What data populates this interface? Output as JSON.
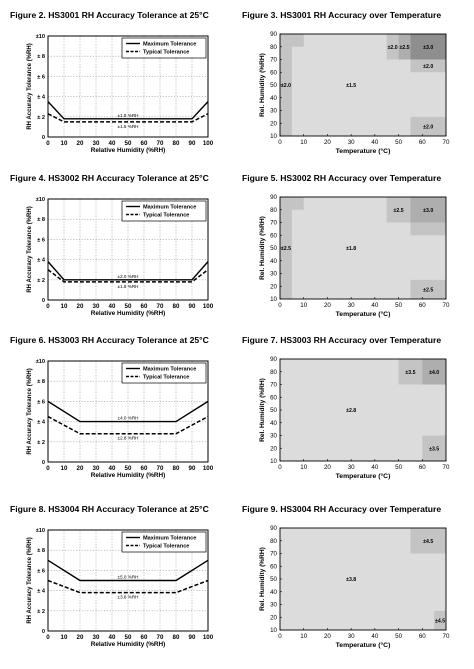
{
  "chart_data": [
    {
      "type": "line",
      "title": "Figure 2.  HS3001 RH Accuracy Tolerance at 25°C",
      "xlabel": "Relative Humidity (%RH)",
      "ylabel": "RH Accuracy Tolerance (%RH)",
      "xlim": [
        0,
        100
      ],
      "ylim": [
        0,
        10
      ],
      "x_ticks": [
        "0",
        "10",
        "20",
        "30",
        "40",
        "50",
        "60",
        "70",
        "80",
        "90",
        "100"
      ],
      "y_ticks": [
        "0",
        "± 2",
        "± 4",
        "± 6",
        "± 8",
        "±10"
      ],
      "grid": true,
      "legend_position": "top-right",
      "series": [
        {
          "name": "Maximum Tolerance",
          "style": "solid",
          "x": [
            0,
            10,
            90,
            100
          ],
          "values": [
            3.5,
            1.8,
            1.8,
            3.5
          ]
        },
        {
          "name": "Typical Tolerance",
          "style": "dashed",
          "x": [
            0,
            10,
            90,
            100
          ],
          "values": [
            2.3,
            1.5,
            1.5,
            2.3
          ]
        }
      ],
      "annotations": [
        {
          "text": "±1.8 %RH",
          "x": 50,
          "y": 1.8
        },
        {
          "text": "±1.5 %RH",
          "x": 50,
          "y": 1.5
        }
      ]
    },
    {
      "type": "heatmap",
      "title": "Figure 3.  HS3001 RH Accuracy over Temperature",
      "xlabel": "Temperature (°C)",
      "ylabel": "Rel. Humidity (%RH)",
      "xlim": [
        0,
        70
      ],
      "ylim": [
        10,
        90
      ],
      "x_ticks": [
        "0",
        "10",
        "20",
        "30",
        "40",
        "50",
        "60",
        "70"
      ],
      "y_ticks": [
        "10",
        "20",
        "30",
        "40",
        "50",
        "60",
        "70",
        "80",
        "90"
      ],
      "regions": [
        {
          "x": [
            0,
            70
          ],
          "y": [
            10,
            90
          ],
          "label": "±1.5",
          "color": "#dcdcdc"
        },
        {
          "x": [
            0,
            5
          ],
          "y": [
            10,
            90
          ],
          "label": "±2.0",
          "color": "#c4c4c4"
        },
        {
          "x": [
            0,
            10
          ],
          "y": [
            80,
            90
          ],
          "label": "",
          "color": "#c4c4c4"
        },
        {
          "x": [
            45,
            50
          ],
          "y": [
            70,
            90
          ],
          "label": "±2.0",
          "color": "#c4c4c4"
        },
        {
          "x": [
            50,
            55
          ],
          "y": [
            70,
            90
          ],
          "label": "±2.5",
          "color": "#aeaeae"
        },
        {
          "x": [
            55,
            70
          ],
          "y": [
            70,
            90
          ],
          "label": "±3.0",
          "color": "#8e8e8e"
        },
        {
          "x": [
            55,
            70
          ],
          "y": [
            60,
            70
          ],
          "label": "±2.0",
          "color": "#c4c4c4"
        },
        {
          "x": [
            55,
            70
          ],
          "y": [
            10,
            25
          ],
          "label": "±2.0",
          "color": "#c4c4c4"
        }
      ]
    },
    {
      "type": "line",
      "title": "Figure 4.  HS3002 RH Accuracy Tolerance at 25°C",
      "xlabel": "Relative Humidity (%RH)",
      "ylabel": "RH Accuracy Tolerance (%RH)",
      "xlim": [
        0,
        100
      ],
      "ylim": [
        0,
        10
      ],
      "x_ticks": [
        "0",
        "10",
        "20",
        "30",
        "40",
        "50",
        "60",
        "70",
        "80",
        "90",
        "100"
      ],
      "y_ticks": [
        "0",
        "± 2",
        "± 4",
        "± 6",
        "± 8",
        "±10"
      ],
      "grid": true,
      "legend_position": "top-right",
      "series": [
        {
          "name": "Maximum Tolerance",
          "style": "solid",
          "x": [
            0,
            10,
            90,
            100
          ],
          "values": [
            3.8,
            2.0,
            2.0,
            3.8
          ]
        },
        {
          "name": "Typical Tolerance",
          "style": "dashed",
          "x": [
            0,
            10,
            90,
            100
          ],
          "values": [
            3.0,
            1.8,
            1.8,
            3.0
          ]
        }
      ],
      "annotations": [
        {
          "text": "±2.0 %RH",
          "x": 50,
          "y": 2.0
        },
        {
          "text": "±1.8 %RH",
          "x": 50,
          "y": 1.8
        }
      ]
    },
    {
      "type": "heatmap",
      "title": "Figure 5.  HS3002 RH Accuracy over Temperature",
      "xlabel": "Temperature (°C)",
      "ylabel": "Rel. Humidity (%RH)",
      "xlim": [
        0,
        70
      ],
      "ylim": [
        10,
        90
      ],
      "x_ticks": [
        "0",
        "10",
        "20",
        "30",
        "40",
        "50",
        "60",
        "70"
      ],
      "y_ticks": [
        "10",
        "20",
        "30",
        "40",
        "50",
        "60",
        "70",
        "80",
        "90"
      ],
      "regions": [
        {
          "x": [
            0,
            70
          ],
          "y": [
            10,
            90
          ],
          "label": "±1.8",
          "color": "#dcdcdc"
        },
        {
          "x": [
            0,
            5
          ],
          "y": [
            10,
            90
          ],
          "label": "±2.5",
          "color": "#c4c4c4"
        },
        {
          "x": [
            0,
            10
          ],
          "y": [
            80,
            90
          ],
          "label": "",
          "color": "#c4c4c4"
        },
        {
          "x": [
            45,
            55
          ],
          "y": [
            70,
            90
          ],
          "label": "±2.5",
          "color": "#c4c4c4"
        },
        {
          "x": [
            55,
            70
          ],
          "y": [
            70,
            90
          ],
          "label": "±3.0",
          "color": "#aeaeae"
        },
        {
          "x": [
            55,
            70
          ],
          "y": [
            60,
            70
          ],
          "label": "",
          "color": "#c4c4c4"
        },
        {
          "x": [
            55,
            70
          ],
          "y": [
            10,
            25
          ],
          "label": "±2.5",
          "color": "#c4c4c4"
        }
      ]
    },
    {
      "type": "line",
      "title": "Figure 6.  HS3003 RH Accuracy Tolerance at 25°C",
      "xlabel": "Relative Humidity (%RH)",
      "ylabel": "RH Accuracy Tolerance (%RH)",
      "xlim": [
        0,
        100
      ],
      "ylim": [
        0,
        10
      ],
      "x_ticks": [
        "0",
        "10",
        "20",
        "30",
        "40",
        "50",
        "60",
        "70",
        "80",
        "90",
        "100"
      ],
      "y_ticks": [
        "0",
        "± 2",
        "± 4",
        "± 6",
        "± 8",
        "±10"
      ],
      "grid": true,
      "legend_position": "top-right",
      "series": [
        {
          "name": "Maximum Tolerance",
          "style": "solid",
          "x": [
            0,
            20,
            80,
            100
          ],
          "values": [
            6.0,
            4.0,
            4.0,
            6.0
          ]
        },
        {
          "name": "Typical Tolerance",
          "style": "dashed",
          "x": [
            0,
            20,
            80,
            100
          ],
          "values": [
            4.5,
            2.8,
            2.8,
            4.5
          ]
        }
      ],
      "annotations": [
        {
          "text": "±4.0 %RH",
          "x": 50,
          "y": 4.0
        },
        {
          "text": "±2.8 %RH",
          "x": 50,
          "y": 2.8
        }
      ]
    },
    {
      "type": "heatmap",
      "title": "Figure 7.  HS3003 RH Accuracy over Temperature",
      "xlabel": "Temperature (°C)",
      "ylabel": "Rel. Humidity (%RH)",
      "xlim": [
        0,
        70
      ],
      "ylim": [
        10,
        90
      ],
      "x_ticks": [
        "0",
        "10",
        "20",
        "30",
        "40",
        "50",
        "60",
        "70"
      ],
      "y_ticks": [
        "10",
        "20",
        "30",
        "40",
        "50",
        "60",
        "70",
        "80",
        "90"
      ],
      "regions": [
        {
          "x": [
            0,
            70
          ],
          "y": [
            10,
            90
          ],
          "label": "±2.8",
          "color": "#dcdcdc"
        },
        {
          "x": [
            50,
            60
          ],
          "y": [
            70,
            90
          ],
          "label": "±3.5",
          "color": "#c4c4c4"
        },
        {
          "x": [
            60,
            70
          ],
          "y": [
            70,
            90
          ],
          "label": "±4.0",
          "color": "#aeaeae"
        },
        {
          "x": [
            60,
            70
          ],
          "y": [
            10,
            30
          ],
          "label": "±3.5",
          "color": "#c4c4c4"
        }
      ]
    },
    {
      "type": "line",
      "title": "Figure 8.  HS3004 RH Accuracy Tolerance at 25°C",
      "xlabel": "Relative Humidity (%RH)",
      "ylabel": "RH Accuracy Tolerance (%RH)",
      "xlim": [
        0,
        100
      ],
      "ylim": [
        0,
        10
      ],
      "x_ticks": [
        "0",
        "10",
        "20",
        "30",
        "40",
        "50",
        "60",
        "70",
        "80",
        "90",
        "100"
      ],
      "y_ticks": [
        "0",
        "± 2",
        "± 4",
        "± 6",
        "± 8",
        "±10"
      ],
      "grid": true,
      "legend_position": "top-right",
      "series": [
        {
          "name": "Maximum Tolerance",
          "style": "solid",
          "x": [
            0,
            20,
            80,
            100
          ],
          "values": [
            7.0,
            5.0,
            5.0,
            7.0
          ]
        },
        {
          "name": "Typical Tolerance",
          "style": "dashed",
          "x": [
            0,
            20,
            80,
            100
          ],
          "values": [
            5.0,
            3.8,
            3.8,
            5.0
          ]
        }
      ],
      "annotations": [
        {
          "text": "±5.0 %RH",
          "x": 50,
          "y": 5.0
        },
        {
          "text": "±3.8 %RH",
          "x": 50,
          "y": 3.8
        }
      ]
    },
    {
      "type": "heatmap",
      "title": "Figure 9.  HS3004 RH Accuracy over Temperature",
      "xlabel": "Temperature (°C)",
      "ylabel": "Rel. Humidity (%RH)",
      "xlim": [
        0,
        70
      ],
      "ylim": [
        10,
        90
      ],
      "x_ticks": [
        "0",
        "10",
        "20",
        "30",
        "40",
        "50",
        "60",
        "70"
      ],
      "y_ticks": [
        "10",
        "20",
        "30",
        "40",
        "50",
        "60",
        "70",
        "80",
        "90"
      ],
      "regions": [
        {
          "x": [
            0,
            70
          ],
          "y": [
            10,
            90
          ],
          "label": "±3.8",
          "color": "#dcdcdc"
        },
        {
          "x": [
            55,
            70
          ],
          "y": [
            70,
            90
          ],
          "label": "±4.5",
          "color": "#c4c4c4"
        },
        {
          "x": [
            65,
            70
          ],
          "y": [
            10,
            25
          ],
          "label": "±4.5",
          "color": "#c4c4c4"
        }
      ]
    }
  ]
}
